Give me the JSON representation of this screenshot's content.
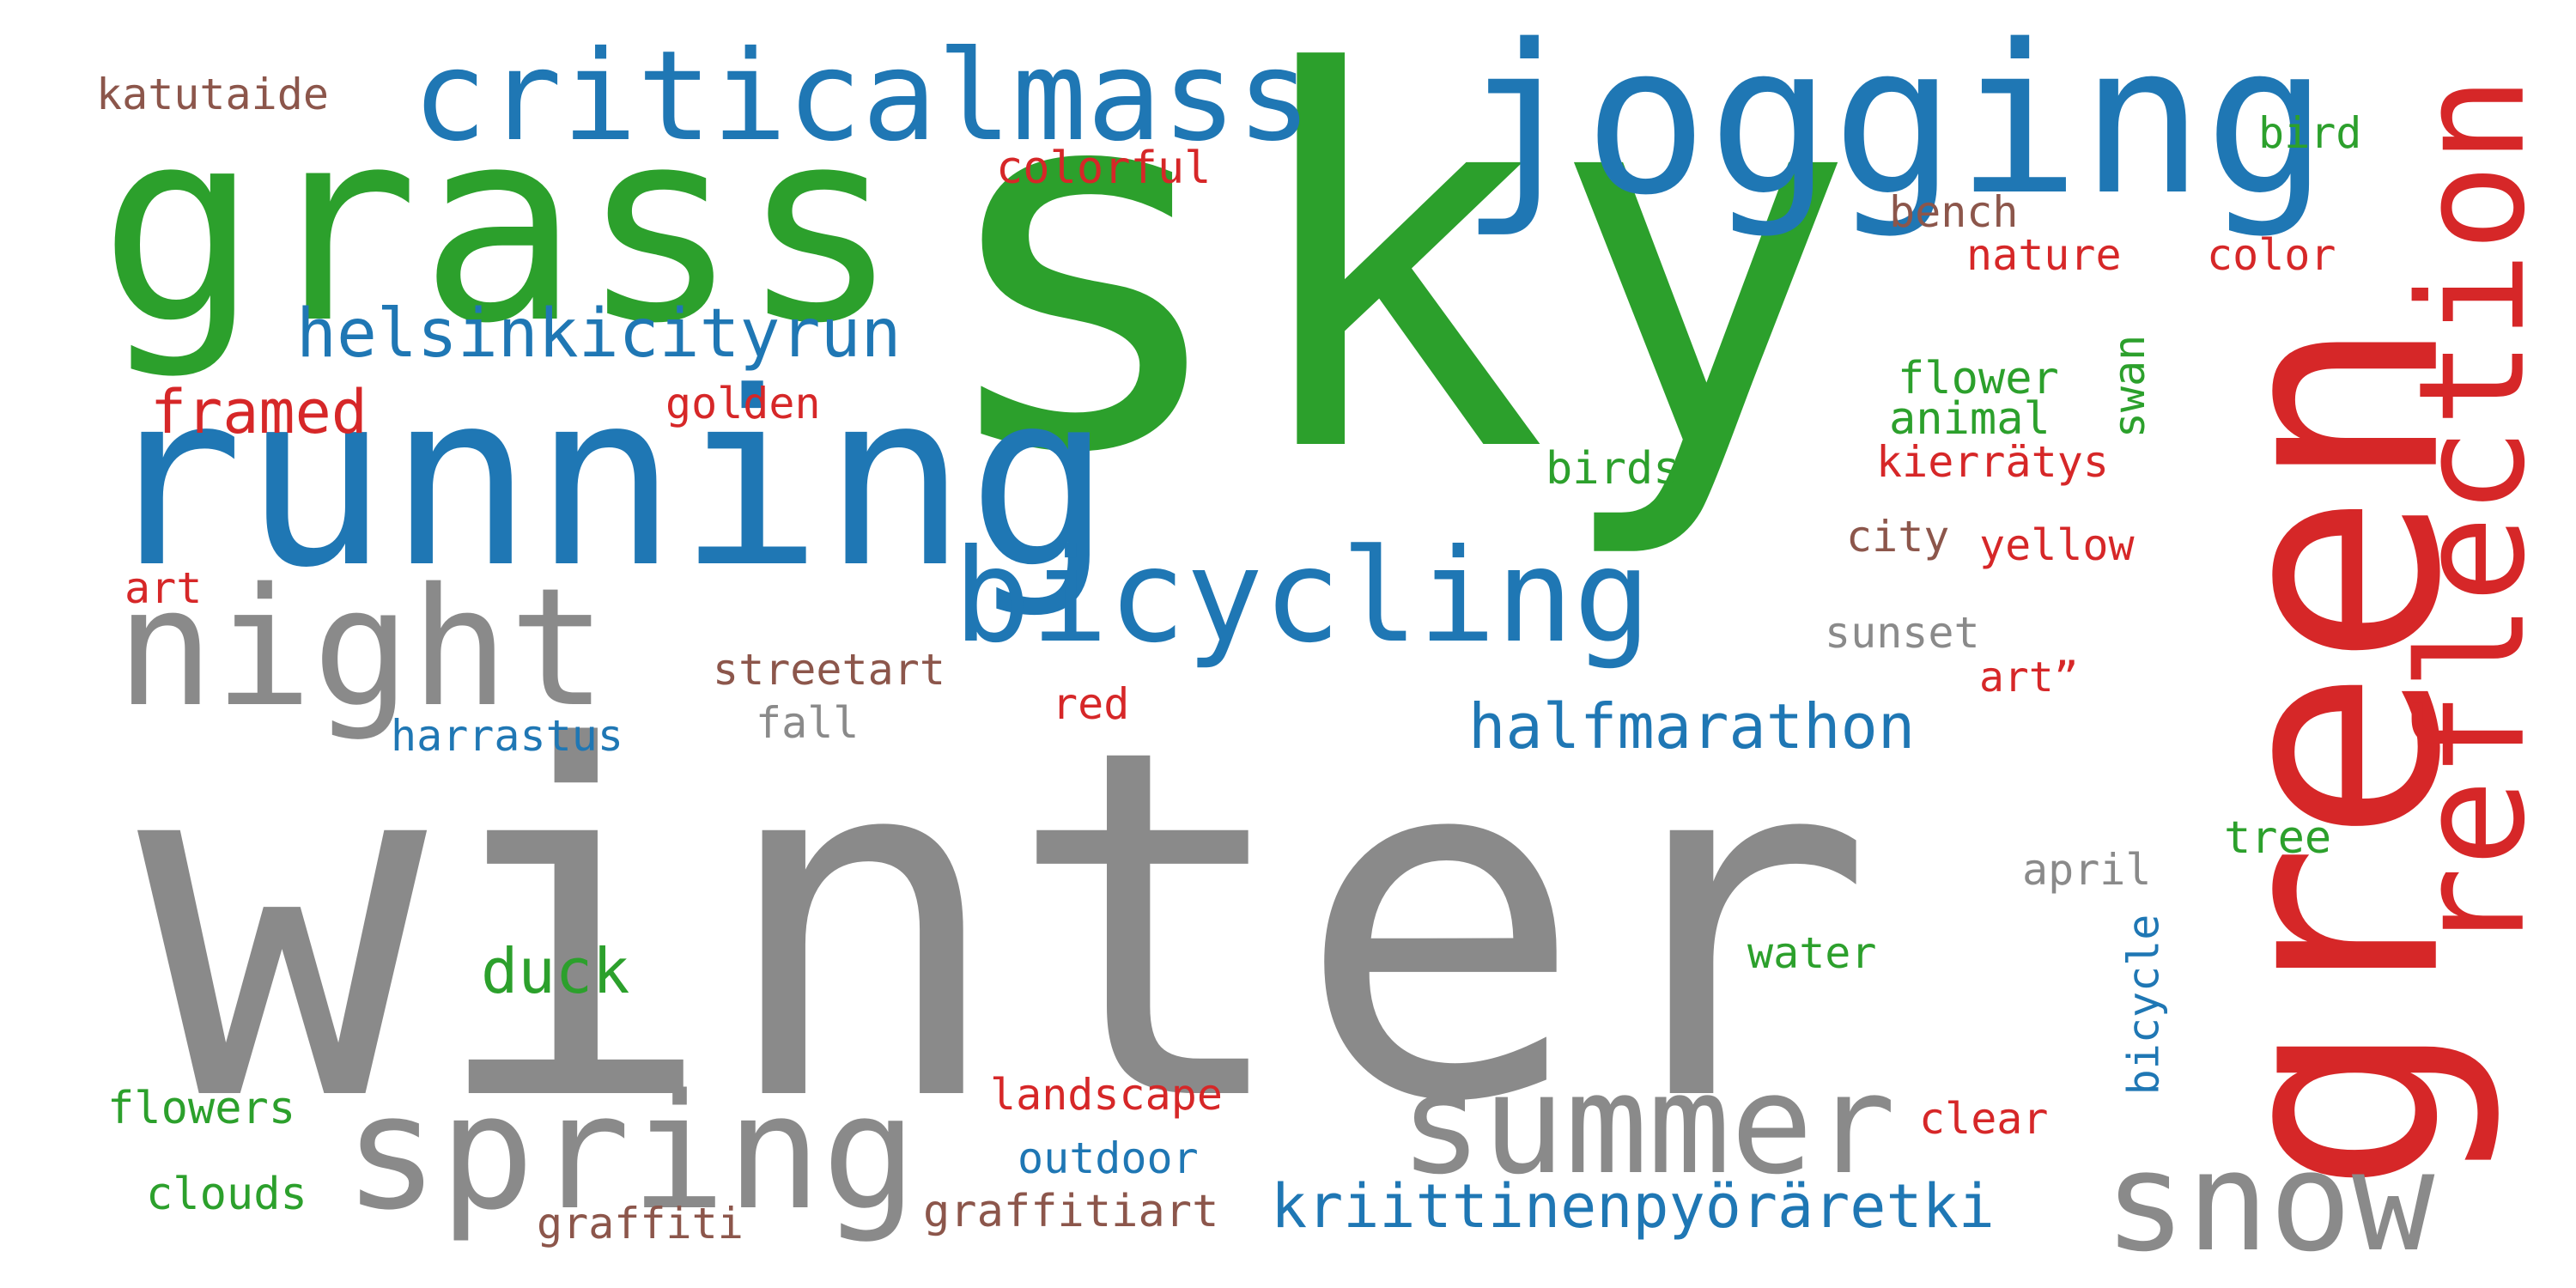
{
  "palette": {
    "gray": "#8a8a8a",
    "green": "#2ca02c",
    "blue": "#1f77b4",
    "red": "#d62728",
    "brown": "#8c564b"
  },
  "words": [
    {
      "text": "winter",
      "color": "gray"
    },
    {
      "text": "sky",
      "color": "green"
    },
    {
      "text": "grass",
      "color": "green"
    },
    {
      "text": "green",
      "color": "red"
    },
    {
      "text": "running",
      "color": "blue"
    },
    {
      "text": "jogging",
      "color": "blue"
    },
    {
      "text": "reflection",
      "color": "red"
    },
    {
      "text": "night",
      "color": "gray"
    },
    {
      "text": "criticalmass",
      "color": "blue"
    },
    {
      "text": "bicycling",
      "color": "blue"
    },
    {
      "text": "spring",
      "color": "gray"
    },
    {
      "text": "summer",
      "color": "gray"
    },
    {
      "text": "snow",
      "color": "gray"
    },
    {
      "text": "helsinkicityrun",
      "color": "blue"
    },
    {
      "text": "halfmarathon",
      "color": "blue"
    },
    {
      "text": "kriittinenpyöräretki",
      "color": "blue"
    },
    {
      "text": "framed",
      "color": "red"
    },
    {
      "text": "duck",
      "color": "green"
    },
    {
      "text": "katutaide",
      "color": "brown"
    },
    {
      "text": "colorful",
      "color": "red"
    },
    {
      "text": "bird",
      "color": "green"
    },
    {
      "text": "bench",
      "color": "brown"
    },
    {
      "text": "nature",
      "color": "red"
    },
    {
      "text": "color",
      "color": "red"
    },
    {
      "text": "golden",
      "color": "red"
    },
    {
      "text": "flower",
      "color": "green"
    },
    {
      "text": "swan",
      "color": "green"
    },
    {
      "text": "animal",
      "color": "green"
    },
    {
      "text": "birds",
      "color": "green"
    },
    {
      "text": "kierrätys",
      "color": "red"
    },
    {
      "text": "city",
      "color": "brown"
    },
    {
      "text": "yellow",
      "color": "red"
    },
    {
      "text": "art",
      "color": "red"
    },
    {
      "text": "sunset",
      "color": "gray"
    },
    {
      "text": "streetart",
      "color": "brown"
    },
    {
      "text": "art”",
      "color": "red"
    },
    {
      "text": "harrastus",
      "color": "blue"
    },
    {
      "text": "fall",
      "color": "gray"
    },
    {
      "text": "red",
      "color": "red"
    },
    {
      "text": "tree",
      "color": "green"
    },
    {
      "text": "april",
      "color": "gray"
    },
    {
      "text": "water",
      "color": "green"
    },
    {
      "text": "bicycle",
      "color": "blue"
    },
    {
      "text": "flowers",
      "color": "green"
    },
    {
      "text": "landscape",
      "color": "red"
    },
    {
      "text": "clear",
      "color": "red"
    },
    {
      "text": "outdoor",
      "color": "blue"
    },
    {
      "text": "clouds",
      "color": "green"
    },
    {
      "text": "graffiti",
      "color": "brown"
    },
    {
      "text": "graffitiart",
      "color": "brown"
    }
  ]
}
